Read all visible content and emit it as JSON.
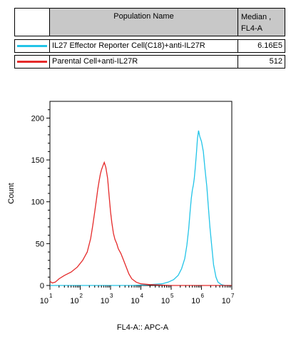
{
  "legend": {
    "header_name": "Population Name",
    "header_median_line1": "Median ,",
    "header_median_line2": "FL4-A",
    "rows": [
      {
        "name": "IL27 Effector Reporter Cell(C18)+anti-IL27R",
        "median": "6.16E5",
        "color": "#22c4e8"
      },
      {
        "name": "Parental Cell+anti-IL27R",
        "median": "512",
        "color": "#e52a2a"
      }
    ]
  },
  "chart_data": {
    "type": "line",
    "title": "",
    "xlabel": "FL4-A:: APC-A",
    "ylabel": "Count",
    "x_scale": "log",
    "xlim": [
      10,
      10000000
    ],
    "ylim": [
      0,
      220
    ],
    "y_ticks": [
      "0",
      "50",
      "100",
      "150",
      "200"
    ],
    "x_tick_base": "10",
    "x_tick_exps": [
      "1",
      "2",
      "3",
      "4",
      "5",
      "6",
      "7"
    ],
    "series": [
      {
        "name": "IL27 Effector Reporter Cell(C18)+anti-IL27R",
        "color": "#22c4e8",
        "x": [
          10,
          100,
          1000,
          5000,
          20000,
          50000,
          80000,
          120000,
          170000,
          220000,
          280000,
          330000,
          380000,
          420000,
          460000,
          500000,
          540000,
          580000,
          620000,
          680000,
          740000,
          800000,
          880000,
          1000000,
          1150000,
          1300000,
          1500000,
          1700000,
          1900000,
          2200000,
          2500000,
          3000000,
          3500000,
          4500000,
          6000000,
          10000000
        ],
        "y": [
          0,
          0,
          0,
          0,
          1,
          2,
          4,
          7,
          12,
          20,
          32,
          48,
          68,
          88,
          104,
          114,
          120,
          128,
          140,
          158,
          176,
          185,
          178,
          172,
          160,
          140,
          118,
          92,
          70,
          45,
          25,
          10,
          4,
          1,
          0,
          0
        ]
      },
      {
        "name": "Parental Cell+anti-IL27R",
        "color": "#e52a2a",
        "x": [
          10,
          12,
          15,
          20,
          30,
          50,
          80,
          120,
          170,
          220,
          260,
          300,
          340,
          380,
          420,
          460,
          500,
          560,
          620,
          700,
          800,
          900,
          1000,
          1100,
          1250,
          1400,
          1600,
          1800,
          2200,
          2700,
          3300,
          4000,
          5000,
          7000,
          10000,
          20000,
          100000,
          10000000
        ],
        "y": [
          5,
          3,
          4,
          8,
          12,
          16,
          22,
          30,
          40,
          56,
          72,
          88,
          102,
          115,
          125,
          133,
          138,
          143,
          147,
          141,
          128,
          106,
          88,
          75,
          62,
          55,
          50,
          44,
          38,
          30,
          22,
          14,
          8,
          4,
          2,
          1,
          0,
          0
        ]
      }
    ]
  }
}
